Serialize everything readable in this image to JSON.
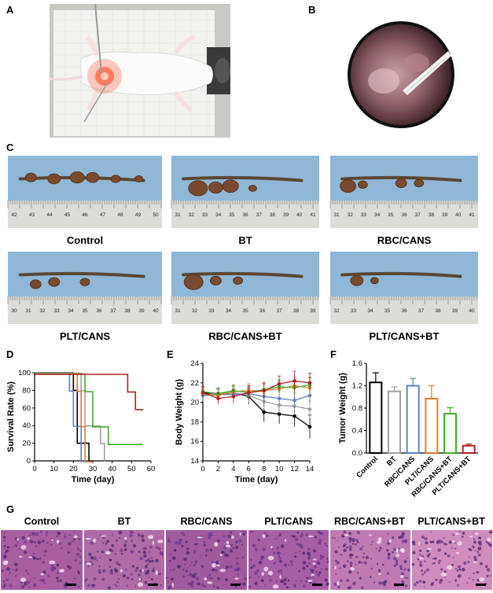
{
  "panels": {
    "A": "A",
    "B": "B",
    "C": "C",
    "D": "D",
    "E": "E",
    "F": "F",
    "G": "G"
  },
  "specimens": [
    "Control",
    "BT",
    "RBC/CANS",
    "PLT/CANS",
    "RBC/CANS+BT",
    "PLT/CANS+BT"
  ],
  "ruler_ticks": [
    [
      "42",
      "43",
      "44",
      "45",
      "46",
      "47",
      "48",
      "49",
      "50"
    ],
    [
      "31",
      "32",
      "33",
      "34",
      "35",
      "36",
      "37",
      "38",
      "39",
      "40",
      "41"
    ],
    [
      "31",
      "32",
      "33",
      "34",
      "35",
      "36",
      "37",
      "38",
      "39",
      "40",
      "41"
    ],
    [
      "30",
      "31",
      "32",
      "33",
      "34",
      "35",
      "36",
      "37",
      "38",
      "39",
      "40"
    ],
    [
      "31",
      "32",
      "33",
      "34",
      "35",
      "36",
      "37",
      "38",
      "39"
    ],
    [
      "32",
      "33",
      "34",
      "35",
      "36",
      "37",
      "38",
      "39",
      "40"
    ]
  ],
  "he_titles": [
    "Control",
    "BT",
    "RBC/CANS",
    "PLT/CANS",
    "RBC/CANS+BT",
    "PLT/CANS+BT"
  ],
  "colors": {
    "Control": "#000000",
    "BT": "#a0a0a0",
    "RBC/CANS": "#5b84c4",
    "PLT/CANS": "#e07b2a",
    "RBC/CANS+BT": "#3fae2a",
    "PLT/CANS+BT": "#b02020"
  },
  "chart_data": [
    {
      "type": "line",
      "panel": "D",
      "xlabel": "Time (day)",
      "ylabel": "Survival Rate (%)",
      "xlim": [
        0,
        60
      ],
      "ylim": [
        0,
        100
      ],
      "xticks": [
        "0",
        "10",
        "20",
        "30",
        "40",
        "50",
        "60"
      ],
      "yticks": [
        "0",
        "20",
        "40",
        "60",
        "80",
        "100"
      ],
      "series": [
        {
          "name": "Control",
          "x": [
            0,
            20,
            20,
            22,
            22,
            28,
            28,
            30
          ],
          "y": [
            100,
            100,
            80,
            80,
            20,
            20,
            0,
            0
          ]
        },
        {
          "name": "BT",
          "x": [
            0,
            24,
            24,
            26,
            26,
            34,
            34,
            36,
            36
          ],
          "y": [
            100,
            100,
            80,
            80,
            40,
            40,
            20,
            20,
            0
          ]
        },
        {
          "name": "RBC/CANS",
          "x": [
            0,
            18,
            18,
            20,
            20,
            24,
            24,
            28
          ],
          "y": [
            100,
            100,
            80,
            80,
            40,
            40,
            0,
            0
          ]
        },
        {
          "name": "PLT/CANS",
          "x": [
            0,
            22,
            22,
            24,
            24,
            26,
            26,
            30
          ],
          "y": [
            100,
            100,
            80,
            80,
            40,
            40,
            0,
            0
          ]
        },
        {
          "name": "RBC/CANS+BT",
          "x": [
            0,
            26,
            26,
            30,
            30,
            38,
            38,
            56
          ],
          "y": [
            100,
            100,
            80,
            80,
            40,
            40,
            20,
            20
          ]
        },
        {
          "name": "PLT/CANS+BT",
          "x": [
            0,
            48,
            48,
            52,
            52,
            56
          ],
          "y": [
            100,
            100,
            80,
            80,
            60,
            60
          ]
        }
      ]
    },
    {
      "type": "line",
      "panel": "E",
      "xlabel": "Time (day)",
      "ylabel": "Body Weight (g)",
      "xlim": [
        0,
        14
      ],
      "ylim": [
        14,
        24
      ],
      "xticks": [
        "0",
        "2",
        "4",
        "6",
        "8",
        "10",
        "12",
        "14"
      ],
      "yticks": [
        "14",
        "16",
        "18",
        "20",
        "22",
        "24"
      ],
      "x": [
        0,
        2,
        4,
        6,
        8,
        10,
        12,
        14
      ],
      "series": [
        {
          "name": "Control",
          "values": [
            21.0,
            20.8,
            21.0,
            20.6,
            19.0,
            18.8,
            18.6,
            17.5
          ],
          "err": [
            0.6,
            0.6,
            0.6,
            0.8,
            1.0,
            1.0,
            1.1,
            1.2
          ]
        },
        {
          "name": "BT",
          "values": [
            20.8,
            20.9,
            21.0,
            20.7,
            20.1,
            19.7,
            19.6,
            19.3
          ],
          "err": [
            0.6,
            0.6,
            0.6,
            0.7,
            0.8,
            0.8,
            0.9,
            0.9
          ]
        },
        {
          "name": "RBC/CANS",
          "values": [
            20.7,
            20.8,
            20.8,
            20.9,
            20.6,
            20.4,
            20.2,
            20.7
          ],
          "err": [
            0.6,
            0.6,
            0.6,
            0.6,
            0.7,
            0.7,
            0.8,
            0.8
          ]
        },
        {
          "name": "PLT/CANS",
          "values": [
            20.9,
            20.7,
            21.1,
            21.2,
            21.2,
            21.4,
            21.7,
            21.5
          ],
          "err": [
            0.6,
            0.6,
            0.6,
            0.7,
            0.7,
            0.8,
            0.9,
            1.0
          ]
        },
        {
          "name": "RBC/CANS+BT",
          "values": [
            21.1,
            20.9,
            21.2,
            21.0,
            21.3,
            21.6,
            21.5,
            21.8
          ],
          "err": [
            0.5,
            0.6,
            0.6,
            0.6,
            0.7,
            0.7,
            0.8,
            0.8
          ]
        },
        {
          "name": "PLT/CANS+BT",
          "values": [
            21.0,
            20.4,
            20.6,
            21.0,
            21.2,
            21.9,
            22.2,
            22.0
          ],
          "err": [
            0.6,
            0.6,
            0.7,
            0.7,
            0.8,
            0.8,
            1.0,
            1.0
          ]
        }
      ]
    },
    {
      "type": "bar",
      "panel": "F",
      "ylabel": "Tumor Weight (g)",
      "ylim": [
        0,
        1.6
      ],
      "yticks": [
        "0.0",
        "0.4",
        "0.8",
        "1.2",
        "1.6"
      ],
      "categories": [
        "Control",
        "BT",
        "RBC/CANS",
        "PLT/CANS",
        "RBC/CANS+BT",
        "PLT/CANS+BT"
      ],
      "values": [
        1.26,
        1.1,
        1.2,
        0.97,
        0.7,
        0.13
      ],
      "err": [
        0.17,
        0.08,
        0.13,
        0.23,
        0.11,
        0.03
      ]
    }
  ]
}
